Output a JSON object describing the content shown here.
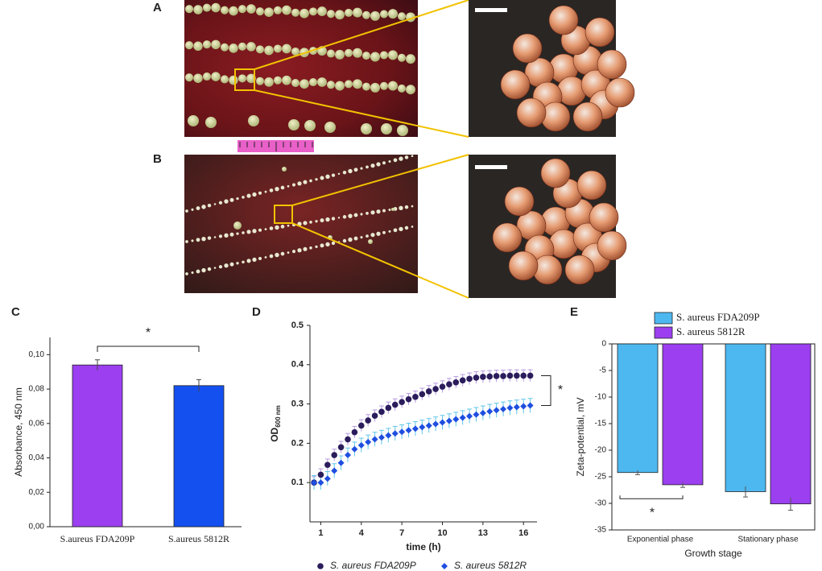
{
  "figure": {
    "panels": [
      "A",
      "B"
    ]
  },
  "chart_data": [
    {
      "type": "bar",
      "panel": "C",
      "y_label": "Absorbance, 450 nm",
      "categories": [
        "S.aureus FDA209P",
        "S.aureus 5812R"
      ],
      "values": [
        0.094,
        0.082
      ],
      "errors": [
        0.003,
        0.0035
      ],
      "colors": [
        "#9b3ff0",
        "#1450f0"
      ],
      "ylim": [
        0,
        0.11
      ],
      "yticks": [
        {
          "value": 0,
          "label": "0,00"
        },
        {
          "value": 0.02,
          "label": "0,02"
        },
        {
          "value": 0.04,
          "label": "0,04"
        },
        {
          "value": 0.06,
          "label": "0,06"
        },
        {
          "value": 0.08,
          "label": "0,08"
        },
        {
          "value": 0.1,
          "label": "0,10"
        }
      ],
      "annotation": "*"
    },
    {
      "type": "scatter",
      "panel": "D",
      "x_label": "time (h)",
      "y_label": "OD",
      "y_label_sub": "600 nm",
      "x": [
        0.5,
        1,
        1.5,
        2,
        2.5,
        3,
        3.5,
        4,
        4.5,
        5,
        5.5,
        6,
        6.5,
        7,
        7.5,
        8,
        8.5,
        9,
        9.5,
        10,
        10.5,
        11,
        11.5,
        12,
        12.5,
        13,
        13.5,
        14,
        14.5,
        15,
        15.5,
        16,
        16.5
      ],
      "series": [
        {
          "name": "S. aureus FDA209P",
          "color": "#2b1d5c",
          "error_color": "#b89be0",
          "marker": "circle",
          "error": 0.015,
          "values": [
            0.1,
            0.12,
            0.145,
            0.17,
            0.19,
            0.21,
            0.228,
            0.245,
            0.258,
            0.27,
            0.28,
            0.29,
            0.298,
            0.305,
            0.312,
            0.318,
            0.325,
            0.332,
            0.338,
            0.344,
            0.35,
            0.355,
            0.36,
            0.364,
            0.367,
            0.369,
            0.37,
            0.371,
            0.371,
            0.372,
            0.372,
            0.372,
            0.372
          ]
        },
        {
          "name": "S. aureus 5812R",
          "color": "#1f4fe0",
          "error_color": "#5fc6ea",
          "marker": "diamond",
          "error": 0.018,
          "values": [
            0.1,
            0.1,
            0.11,
            0.13,
            0.15,
            0.17,
            0.185,
            0.195,
            0.203,
            0.21,
            0.215,
            0.22,
            0.225,
            0.229,
            0.233,
            0.237,
            0.241,
            0.245,
            0.249,
            0.253,
            0.257,
            0.261,
            0.265,
            0.269,
            0.273,
            0.277,
            0.281,
            0.284,
            0.287,
            0.29,
            0.292,
            0.294,
            0.296
          ]
        }
      ],
      "xlim": [
        0.2,
        17
      ],
      "ylim": [
        0,
        0.5
      ],
      "xticks": [
        1,
        4,
        7,
        10,
        13,
        16
      ],
      "yticks": [
        0.1,
        0.2,
        0.3,
        0.4,
        0.5
      ],
      "legend": "bottom",
      "annotation": "*"
    },
    {
      "type": "grouped-bar",
      "panel": "E",
      "x_label": "Growth stage",
      "y_label": "Zeta-potential, mV",
      "categories": [
        "Exponential phase",
        "Stationary phase"
      ],
      "series": [
        {
          "name": "S. aureus FDA209P",
          "color": "#4db8f0",
          "values": [
            -24.2,
            -27.8
          ],
          "errors": [
            0.4,
            1.0
          ]
        },
        {
          "name": "S. aureus 5812R",
          "color": "#9b3ff0",
          "values": [
            -26.5,
            -30.1
          ],
          "errors": [
            0.5,
            1.2
          ]
        }
      ],
      "ylim": [
        -35,
        0
      ],
      "yticks": [
        -35,
        -30,
        -25,
        -20,
        -15,
        -10,
        -5,
        0
      ],
      "legend": "top",
      "annotation": "*"
    }
  ]
}
